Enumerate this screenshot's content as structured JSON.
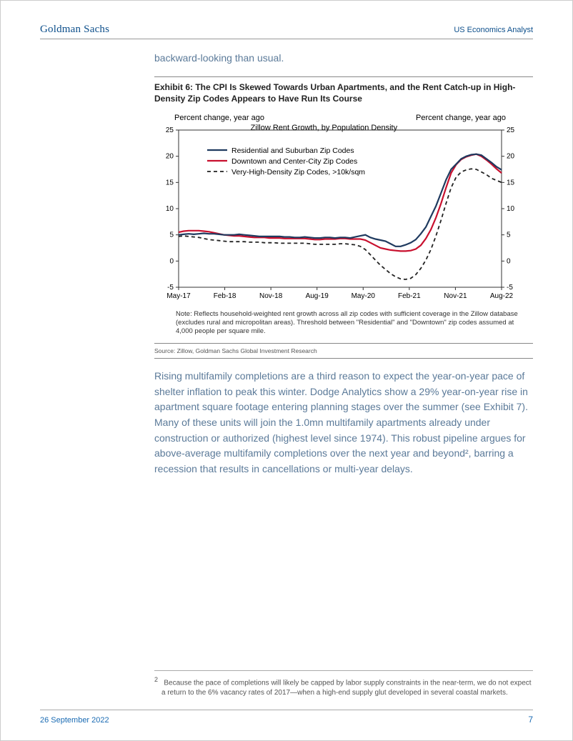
{
  "header": {
    "logo": "Goldman Sachs",
    "doc_title": "US Economics Analyst"
  },
  "intro": "backward-looking than usual.",
  "exhibit": {
    "title": "Exhibit 6: The CPI Is Skewed Towards Urban Apartments, and the Rent Catch-up in High-Density Zip Codes Appears to Have Run Its Course",
    "source": "Source: Zillow, Goldman Sachs Global Investment Research",
    "note": "Note: Reflects household-weighted rent growth across all zip codes with sufficient coverage in the Zillow database (excludes rural and micropolitan areas). Threshold between \"Residential\" and \"Downtown\" zip codes assumed at 4,000 people per square mile.",
    "chart": {
      "type": "line",
      "axis_left_label": "Percent change, year ago",
      "axis_right_label": "Percent change, year ago",
      "subtitle": "Zillow Rent Growth, by Population Density",
      "ylim": [
        -5,
        25
      ],
      "ytick_step": 5,
      "yticks": [
        -5,
        0,
        5,
        10,
        15,
        20,
        25
      ],
      "x_labels": [
        "May-17",
        "Feb-18",
        "Nov-18",
        "Aug-19",
        "May-20",
        "Feb-21",
        "Nov-21",
        "Aug-22"
      ],
      "x_count": 65,
      "background_color": "#ffffff",
      "grid_color": "#bfbfbf",
      "axis_color": "#333333",
      "title_fontsize": 11,
      "label_fontsize": 11,
      "tick_fontsize": 10,
      "legend": {
        "items": [
          {
            "label": "Residential and Suburban Zip Codes",
            "color": "#1f3a5f",
            "dash": "none",
            "width": 2.2
          },
          {
            "label": "Downtown and Center-City Zip Codes",
            "color": "#c8102e",
            "dash": "none",
            "width": 2.2
          },
          {
            "label": "Very-High-Density Zip Codes, >10k/sqm",
            "color": "#222222",
            "dash": "5,4",
            "width": 1.8
          }
        ]
      },
      "series": {
        "residential": [
          5.0,
          5.1,
          5.2,
          5.1,
          5.2,
          5.3,
          5.2,
          5.2,
          5.1,
          5.0,
          5.0,
          5.0,
          5.1,
          5.0,
          4.9,
          4.8,
          4.7,
          4.7,
          4.7,
          4.7,
          4.7,
          4.6,
          4.6,
          4.5,
          4.5,
          4.6,
          4.5,
          4.4,
          4.4,
          4.5,
          4.5,
          4.4,
          4.5,
          4.5,
          4.4,
          4.6,
          4.8,
          5.0,
          4.5,
          4.2,
          4.0,
          3.8,
          3.3,
          2.8,
          2.8,
          3.1,
          3.5,
          4.1,
          5.2,
          6.5,
          8.5,
          10.5,
          13.0,
          15.5,
          17.5,
          18.5,
          19.5,
          20.0,
          20.3,
          20.4,
          20.2,
          19.5,
          18.8,
          18.0,
          17.4
        ],
        "downtown": [
          5.5,
          5.7,
          5.8,
          5.8,
          5.8,
          5.7,
          5.6,
          5.4,
          5.2,
          5.0,
          4.9,
          4.8,
          4.8,
          4.7,
          4.6,
          4.5,
          4.5,
          4.5,
          4.4,
          4.4,
          4.4,
          4.3,
          4.3,
          4.3,
          4.3,
          4.3,
          4.2,
          4.1,
          4.1,
          4.2,
          4.2,
          4.2,
          4.3,
          4.3,
          4.2,
          4.2,
          4.2,
          4.0,
          3.5,
          3.0,
          2.5,
          2.3,
          2.1,
          2.0,
          1.9,
          1.9,
          2.0,
          2.3,
          3.0,
          4.3,
          6.0,
          8.3,
          11.0,
          14.0,
          16.8,
          18.4,
          19.4,
          19.9,
          20.2,
          20.4,
          20.0,
          19.3,
          18.5,
          17.6,
          16.8
        ],
        "vhd": [
          4.7,
          4.8,
          4.7,
          4.6,
          4.5,
          4.3,
          4.1,
          4.0,
          3.9,
          3.8,
          3.7,
          3.7,
          3.7,
          3.7,
          3.6,
          3.6,
          3.6,
          3.5,
          3.5,
          3.5,
          3.4,
          3.4,
          3.4,
          3.4,
          3.4,
          3.4,
          3.3,
          3.2,
          3.2,
          3.2,
          3.2,
          3.2,
          3.3,
          3.3,
          3.2,
          3.1,
          2.8,
          2.2,
          1.2,
          0.2,
          -0.8,
          -1.6,
          -2.4,
          -3.0,
          -3.4,
          -3.5,
          -3.3,
          -2.6,
          -1.4,
          0.2,
          2.2,
          4.8,
          7.8,
          11.0,
          14.0,
          16.0,
          17.0,
          17.4,
          17.6,
          17.5,
          17.0,
          16.5,
          15.8,
          15.4,
          15.0
        ]
      }
    }
  },
  "body_para": "Rising multifamily completions are a third reason to expect the year-on-year pace of shelter inflation to peak this winter. Dodge Analytics show a 29% year-on-year rise in apartment square footage entering planning stages over the summer (see Exhibit 7). Many of these units will join the 1.0mn multifamily apartments already under construction or authorized (highest level since 1974). This robust pipeline argues for above-average multifamily completions over the next year and beyond², barring a recession that results in cancellations or multi-year delays.",
  "footnote": {
    "num": "2",
    "text": "Because the pace of completions will likely be capped by labor supply constraints in the near-term, we do not expect a return to the 6% vacancy rates of 2017—when a high-end supply glut developed in several coastal markets."
  },
  "footer": {
    "date": "26 September 2022",
    "page": "7"
  }
}
